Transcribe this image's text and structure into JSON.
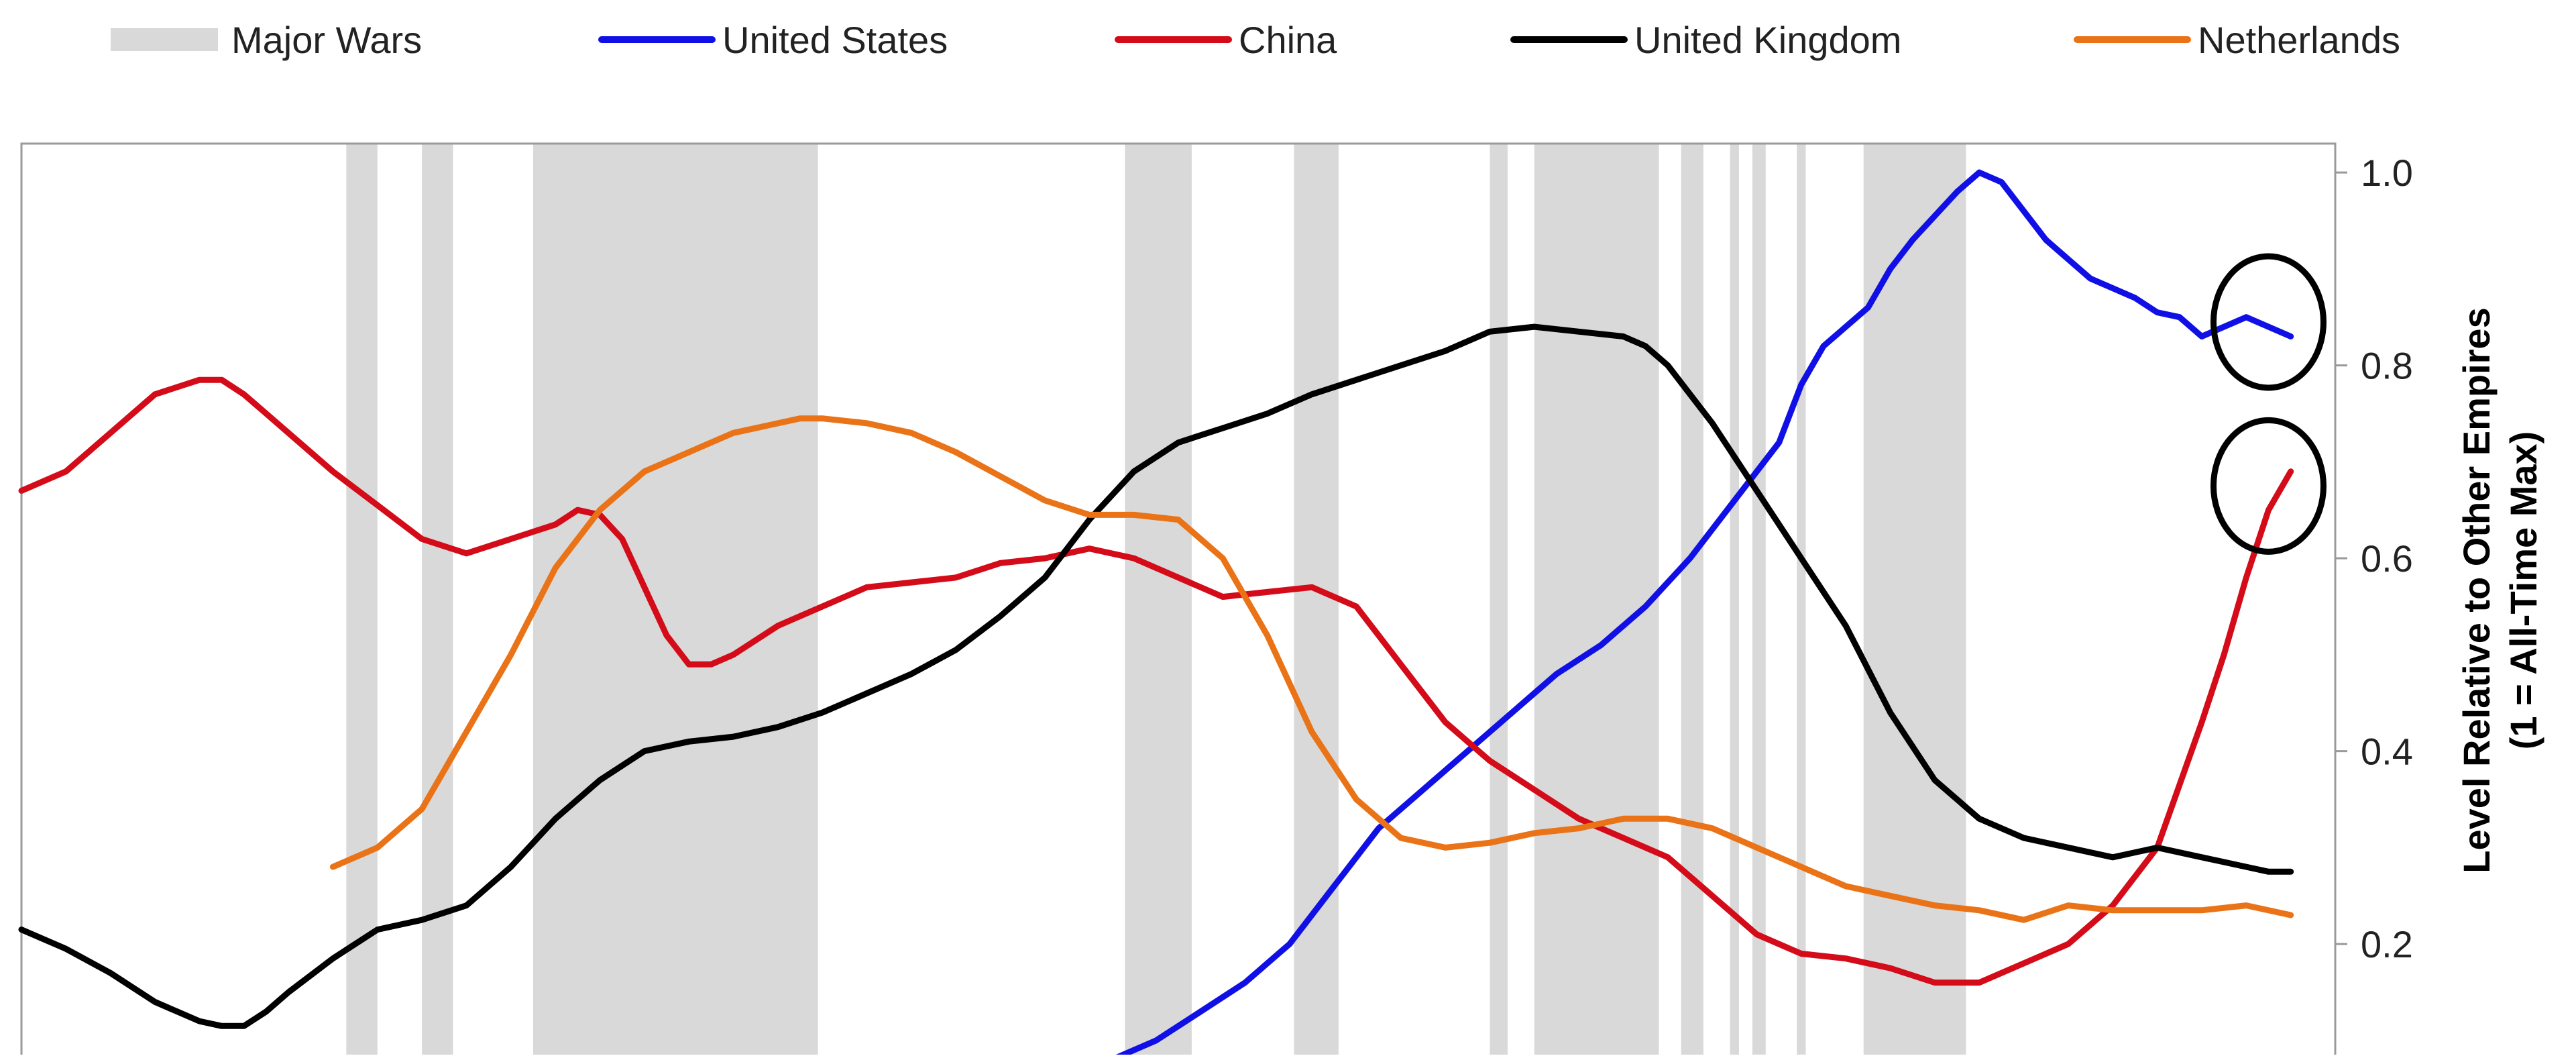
{
  "chart_data": {
    "type": "line",
    "title": "",
    "xlabel": "",
    "ylabel": "Level Relative to Other Empires",
    "ylabel_line2": "(1 = All-Time Max)",
    "ylim": [
      0.07,
      1.03
    ],
    "xlim": [
      1500,
      2020
    ],
    "y_axis_position": "right",
    "yticks": [
      0.2,
      0.4,
      0.6,
      0.8,
      1.0
    ],
    "ytick_labels": [
      "0.2",
      "0.4",
      "0.6",
      "0.8",
      "1.0"
    ],
    "grid": false,
    "legend_position": "top",
    "wars_legend_label": "Major Wars",
    "wars_color": "#d9d9d9",
    "wars": [
      [
        1573,
        1580
      ],
      [
        1590,
        1597
      ],
      [
        1615,
        1679
      ],
      [
        1748,
        1763
      ],
      [
        1786,
        1796
      ],
      [
        1830,
        1834
      ],
      [
        1840,
        1868
      ],
      [
        1873,
        1878
      ],
      [
        1884,
        1886
      ],
      [
        1889,
        1892
      ],
      [
        1899,
        1901
      ],
      [
        1914,
        1937
      ]
    ],
    "highlight_circles": [
      {
        "x": 2005,
        "y": 0.845
      },
      {
        "x": 2005,
        "y": 0.675
      }
    ],
    "series": [
      {
        "name": "United States",
        "color": "#1010e6",
        "x": [
          1735,
          1745,
          1755,
          1765,
          1775,
          1785,
          1795,
          1805,
          1815,
          1825,
          1835,
          1845,
          1855,
          1865,
          1875,
          1885,
          1895,
          1900,
          1905,
          1910,
          1915,
          1920,
          1925,
          1930,
          1935,
          1940,
          1945,
          1950,
          1955,
          1960,
          1965,
          1970,
          1975,
          1980,
          1985,
          1990,
          1995,
          2000,
          2005,
          2010
        ],
        "values": [
          0.06,
          0.08,
          0.1,
          0.13,
          0.16,
          0.2,
          0.26,
          0.32,
          0.36,
          0.4,
          0.44,
          0.48,
          0.51,
          0.55,
          0.6,
          0.66,
          0.72,
          0.78,
          0.82,
          0.84,
          0.86,
          0.9,
          0.93,
          0.955,
          0.98,
          1.0,
          0.99,
          0.96,
          0.93,
          0.91,
          0.89,
          0.88,
          0.87,
          0.855,
          0.85,
          0.83,
          0.84,
          0.85,
          0.84,
          0.83
        ]
      },
      {
        "name": "China",
        "color": "#d40b18",
        "x": [
          1500,
          1510,
          1520,
          1530,
          1540,
          1545,
          1550,
          1555,
          1560,
          1570,
          1580,
          1590,
          1600,
          1610,
          1620,
          1625,
          1630,
          1635,
          1640,
          1645,
          1650,
          1655,
          1660,
          1670,
          1680,
          1690,
          1700,
          1710,
          1720,
          1730,
          1740,
          1750,
          1755,
          1760,
          1770,
          1780,
          1790,
          1800,
          1805,
          1810,
          1820,
          1830,
          1840,
          1850,
          1860,
          1870,
          1880,
          1890,
          1900,
          1910,
          1920,
          1930,
          1935,
          1940,
          1945,
          1950,
          1960,
          1970,
          1980,
          1990,
          1995,
          2000,
          2005,
          2010
        ],
        "values": [
          0.67,
          0.69,
          0.73,
          0.77,
          0.785,
          0.785,
          0.77,
          0.75,
          0.73,
          0.69,
          0.655,
          0.62,
          0.605,
          0.62,
          0.635,
          0.65,
          0.645,
          0.62,
          0.57,
          0.52,
          0.49,
          0.49,
          0.5,
          0.53,
          0.55,
          0.57,
          0.575,
          0.58,
          0.595,
          0.6,
          0.61,
          0.6,
          0.59,
          0.58,
          0.56,
          0.565,
          0.57,
          0.55,
          0.52,
          0.49,
          0.43,
          0.39,
          0.36,
          0.33,
          0.31,
          0.29,
          0.25,
          0.21,
          0.19,
          0.185,
          0.175,
          0.16,
          0.16,
          0.16,
          0.17,
          0.18,
          0.2,
          0.24,
          0.3,
          0.43,
          0.5,
          0.58,
          0.65,
          0.69
        ]
      },
      {
        "name": "United Kingdom",
        "color": "#000000",
        "x": [
          1500,
          1510,
          1520,
          1530,
          1535,
          1540,
          1545,
          1550,
          1555,
          1560,
          1570,
          1580,
          1590,
          1600,
          1610,
          1620,
          1630,
          1640,
          1650,
          1660,
          1670,
          1680,
          1690,
          1700,
          1710,
          1720,
          1730,
          1740,
          1750,
          1760,
          1770,
          1780,
          1790,
          1800,
          1810,
          1820,
          1830,
          1840,
          1850,
          1860,
          1865,
          1870,
          1880,
          1890,
          1900,
          1910,
          1920,
          1930,
          1940,
          1950,
          1960,
          1970,
          1980,
          1990,
          2000,
          2005,
          2010
        ],
        "values": [
          0.215,
          0.195,
          0.17,
          0.14,
          0.13,
          0.12,
          0.115,
          0.115,
          0.13,
          0.15,
          0.185,
          0.215,
          0.225,
          0.24,
          0.28,
          0.33,
          0.37,
          0.4,
          0.41,
          0.415,
          0.425,
          0.44,
          0.46,
          0.48,
          0.505,
          0.54,
          0.58,
          0.64,
          0.69,
          0.72,
          0.735,
          0.75,
          0.77,
          0.785,
          0.8,
          0.815,
          0.835,
          0.84,
          0.835,
          0.83,
          0.82,
          0.8,
          0.74,
          0.67,
          0.6,
          0.53,
          0.44,
          0.37,
          0.33,
          0.31,
          0.3,
          0.29,
          0.3,
          0.29,
          0.28,
          0.275,
          0.275
        ]
      },
      {
        "name": "Netherlands",
        "color": "#e97316",
        "x": [
          1570,
          1575,
          1580,
          1590,
          1600,
          1610,
          1620,
          1630,
          1640,
          1650,
          1660,
          1670,
          1675,
          1680,
          1690,
          1700,
          1710,
          1720,
          1730,
          1740,
          1750,
          1760,
          1770,
          1780,
          1790,
          1800,
          1810,
          1820,
          1830,
          1840,
          1850,
          1860,
          1870,
          1880,
          1890,
          1900,
          1910,
          1920,
          1930,
          1940,
          1950,
          1960,
          1970,
          1980,
          1990,
          2000,
          2010
        ],
        "values": [
          0.28,
          0.29,
          0.3,
          0.34,
          0.42,
          0.5,
          0.59,
          0.65,
          0.69,
          0.71,
          0.73,
          0.74,
          0.745,
          0.745,
          0.74,
          0.73,
          0.71,
          0.685,
          0.66,
          0.645,
          0.645,
          0.64,
          0.6,
          0.52,
          0.42,
          0.35,
          0.31,
          0.3,
          0.305,
          0.315,
          0.32,
          0.33,
          0.33,
          0.32,
          0.3,
          0.28,
          0.26,
          0.25,
          0.24,
          0.235,
          0.225,
          0.24,
          0.235,
          0.235,
          0.235,
          0.24,
          0.23
        ]
      }
    ]
  }
}
